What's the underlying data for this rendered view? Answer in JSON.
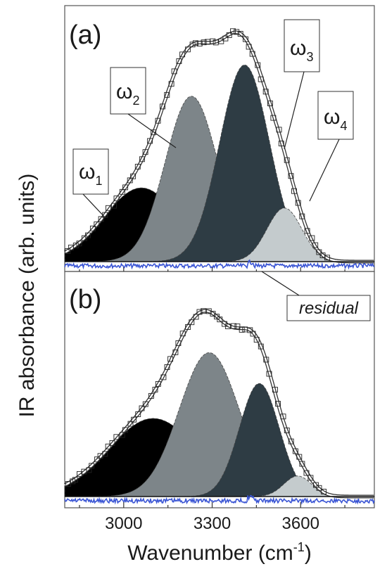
{
  "figure": {
    "ylabel": "IR absorbance (arb. units)",
    "xlabel_main": "Wavenumber (cm",
    "xlabel_sup": "-1",
    "xlabel_close": ")",
    "xticks": [
      "3000",
      "3300",
      "3600"
    ],
    "xtick_values": [
      3000,
      3300,
      3600
    ]
  },
  "colors": {
    "omega1": "#000000",
    "omega2": "#7d8589",
    "omega3": "#2e3c44",
    "omega4": "#c4cbcd",
    "residual": "#3a55d4",
    "envelope": "#ffffff"
  },
  "chart_data": [
    {
      "type": "area",
      "panel_label": "(a)",
      "xlim": [
        2800,
        3850
      ],
      "x_unit": "cm-1",
      "grid": false,
      "components": [
        {
          "name": "ω1",
          "label_main": "ω",
          "label_sub": "1",
          "center": 3060,
          "height": 0.33,
          "fwhm": 300
        },
        {
          "name": "ω2",
          "label_main": "ω",
          "label_sub": "2",
          "center": 3230,
          "height": 0.74,
          "fwhm": 210
        },
        {
          "name": "ω3",
          "label_main": "ω",
          "label_sub": "3",
          "center": 3410,
          "height": 0.88,
          "fwhm": 200
        },
        {
          "name": "ω4",
          "label_main": "ω",
          "label_sub": "4",
          "center": 3545,
          "height": 0.24,
          "fwhm": 140
        }
      ],
      "envelope_peak": 1.0,
      "residual_label": "residual"
    },
    {
      "type": "area",
      "panel_label": "(b)",
      "xlim": [
        2800,
        3850
      ],
      "x_unit": "cm-1",
      "grid": false,
      "components": [
        {
          "name": "ω1",
          "center": 3100,
          "height": 0.38,
          "fwhm": 360
        },
        {
          "name": "ω2",
          "center": 3290,
          "height": 0.7,
          "fwhm": 240
        },
        {
          "name": "ω3",
          "center": 3460,
          "height": 0.55,
          "fwhm": 160
        },
        {
          "name": "ω4",
          "center": 3590,
          "height": 0.1,
          "fwhm": 110
        }
      ],
      "envelope_peak": 1.0
    }
  ]
}
